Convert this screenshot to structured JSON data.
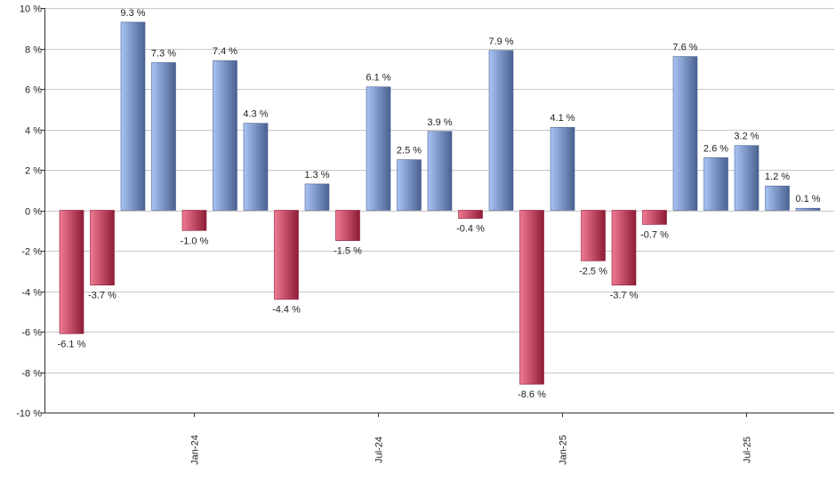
{
  "chart_data": {
    "type": "bar",
    "title": "",
    "xlabel": "",
    "ylabel": "",
    "ylim": [
      -10,
      10
    ],
    "yticks": [
      10,
      8,
      6,
      4,
      2,
      0,
      -2,
      -4,
      -6,
      -8,
      -10
    ],
    "ytick_suffix": " %",
    "grid": true,
    "legend": "none",
    "values": [
      -6.1,
      -3.7,
      9.3,
      7.3,
      -1.0,
      7.4,
      4.3,
      -4.4,
      1.3,
      -1.5,
      6.1,
      2.5,
      3.9,
      -0.4,
      7.9,
      -8.6,
      4.1,
      -2.5,
      -3.7,
      -0.7,
      7.6,
      2.6,
      3.2,
      1.2,
      0.1
    ],
    "labels": [
      "-6.1 %",
      "-3.7 %",
      "9.3 %",
      "7.3 %",
      "-1.0 %",
      "7.4 %",
      "4.3 %",
      "-4.4 %",
      "1.3 %",
      "-1.5 %",
      "6.1 %",
      "2.5 %",
      "3.9 %",
      "-0.4 %",
      "7.9 %",
      "-8.6 %",
      "4.1 %",
      "-2.5 %",
      "-3.7 %",
      "-0.7 %",
      "7.6 %",
      "2.6 %",
      "3.2 %",
      "1.2 %",
      "0.1 %"
    ],
    "xticks": [
      {
        "label": "Jan-24",
        "bar_index": 4
      },
      {
        "label": "Jul-24",
        "bar_index": 10
      },
      {
        "label": "Jan-25",
        "bar_index": 16
      },
      {
        "label": "Jul-25",
        "bar_index": 22
      }
    ],
    "colors": {
      "positive_light": "#a9c4f5",
      "positive_dark": "#4a6190",
      "negative_light": "#f07a93",
      "negative_dark": "#8e1c35",
      "grid": "#c8c8c8",
      "axis": "#333333"
    }
  }
}
